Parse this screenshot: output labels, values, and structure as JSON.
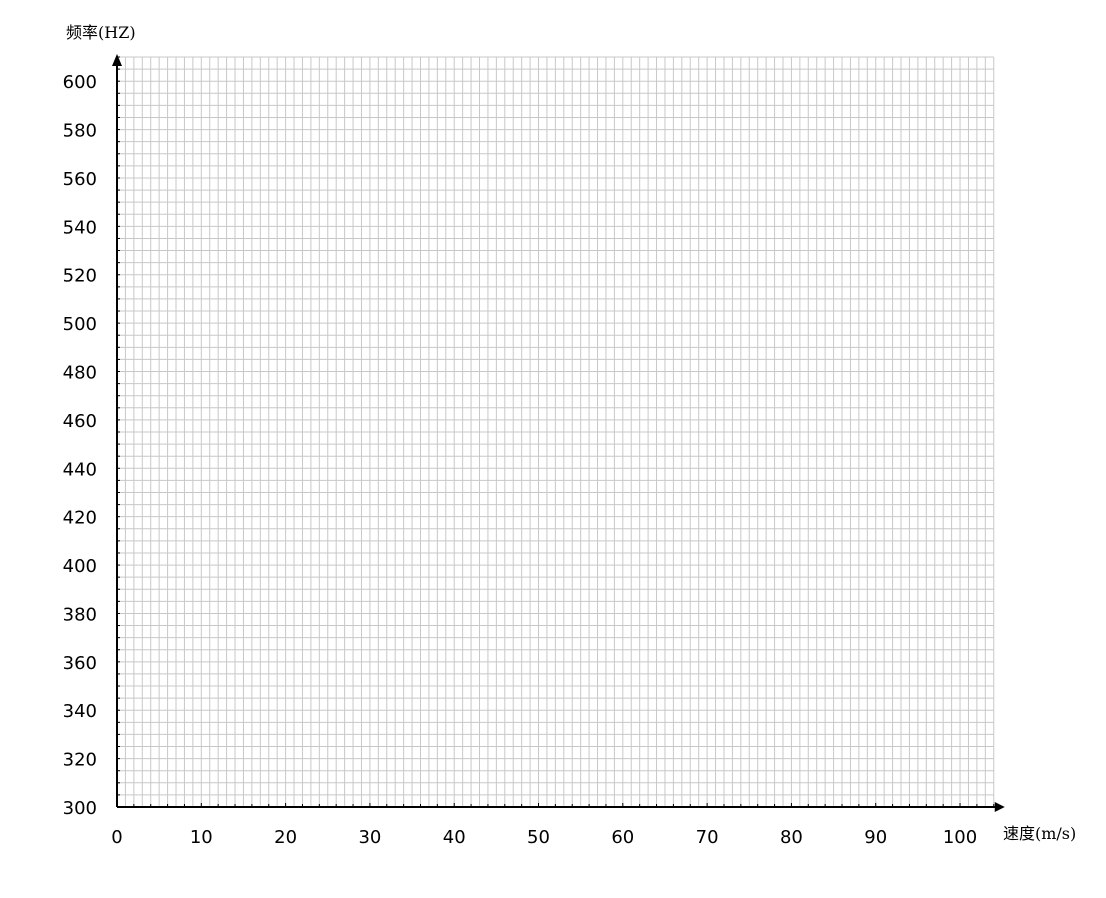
{
  "chart_data": {
    "type": "line",
    "title": "",
    "xlabel": "速度(m/s)",
    "ylabel": "频率(HZ)",
    "xlim": [
      0,
      104
    ],
    "ylim": [
      300,
      610
    ],
    "x_ticks": [
      "0",
      "10",
      "20",
      "30",
      "40",
      "50",
      "60",
      "70",
      "80",
      "90",
      "100"
    ],
    "y_ticks": [
      "300",
      "320",
      "340",
      "360",
      "380",
      "400",
      "420",
      "440",
      "460",
      "480",
      "500",
      "520",
      "540",
      "560",
      "580",
      "600"
    ],
    "grid": true,
    "series": []
  }
}
